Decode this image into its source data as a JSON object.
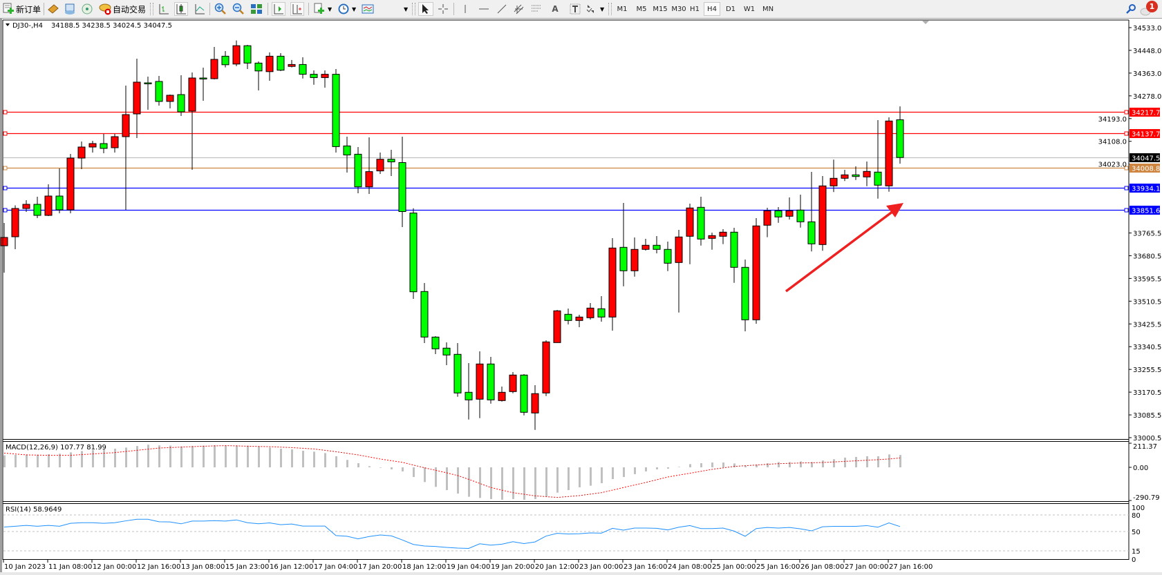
{
  "toolbar": {
    "new_order": "新订单",
    "auto_trading": "自动交易",
    "timeframes": [
      "M1",
      "M5",
      "M15",
      "M30",
      "H1",
      "H4",
      "D1",
      "W1",
      "MN"
    ],
    "active_timeframe": "H4",
    "notification_count": "1",
    "text_tool": "A"
  },
  "chart": {
    "symbol_label": "DJ30-,H4",
    "ohlc_label": "34188.5 34238.5 34024.5 34047.5",
    "up_color": "#ff0000",
    "down_color": "#00ff00",
    "price_ticks": [
      "34533.0",
      "34448.0",
      "34363.0",
      "34278.0",
      "34193.0",
      "34108.0",
      "34023.0",
      "33765.5",
      "33680.5",
      "33595.5",
      "33510.5",
      "33425.5",
      "33340.5",
      "33255.5",
      "33170.5",
      "33085.5",
      "33000.5"
    ],
    "levels": [
      {
        "value": "34217.7",
        "color": "#ff0000"
      },
      {
        "value": "34137.7",
        "color": "#ff0000"
      },
      {
        "value": "34008.8",
        "color": "#cd853f"
      },
      {
        "value": "33934.1",
        "color": "#0000ff"
      },
      {
        "value": "33851.6",
        "color": "#0000ff"
      }
    ],
    "bid": {
      "value": "34047.5",
      "color": "#c0c0c0"
    },
    "candles": [
      [
        33717.7,
        33802.9,
        33617.1,
        33748.7
      ],
      [
        33751.3,
        33868.8,
        33704.8,
        33857.0
      ],
      [
        33857.0,
        33888.0,
        33844.1,
        33872.5
      ],
      [
        33872.5,
        33900.9,
        33820.9,
        33831.2
      ],
      [
        33831.2,
        33947.3,
        33828.7,
        33903.5
      ],
      [
        33903.5,
        34006.7,
        33839.0,
        33851.9
      ],
      [
        33851.9,
        34060.9,
        33839.0,
        34045.4
      ],
      [
        34045.4,
        34107.2,
        34004.1,
        34086.7
      ],
      [
        34086.7,
        34109.9,
        34066.0,
        34099.6
      ],
      [
        34099.6,
        34135.7,
        34063.4,
        34081.5
      ],
      [
        34084.1,
        34135.7,
        34066.0,
        34125.4
      ],
      [
        34125.4,
        34316.3,
        33851.9,
        34207.9
      ],
      [
        34210.5,
        34416.9,
        34120.2,
        34329.2
      ],
      [
        34326.6,
        34349.8,
        34226.0,
        34324.0
      ],
      [
        34331.8,
        34352.4,
        34241.5,
        34257.1
      ],
      [
        34257.1,
        34282.7,
        34231.1,
        34280.2
      ],
      [
        34282.7,
        34355.0,
        34202.8,
        34218.2
      ],
      [
        34220.8,
        34365.3,
        34001.5,
        34344.7
      ],
      [
        34344.7,
        34383.4,
        34259.5,
        34342.1
      ],
      [
        34342.1,
        34460.8,
        34339.5,
        34414.3
      ],
      [
        34426.2,
        34445.3,
        34384.4,
        34394.2
      ],
      [
        34396.8,
        34485.0,
        34388.8,
        34465.4
      ],
      [
        34465.4,
        34468.5,
        34378.2,
        34400.4
      ],
      [
        34400.4,
        34406.6,
        34298.2,
        34371.0
      ],
      [
        34368.4,
        34440.4,
        34334.3,
        34426.2
      ],
      [
        34426.2,
        34437.5,
        34370.5,
        34373.8
      ],
      [
        34388.0,
        34412.0,
        34384.4,
        34395.2
      ],
      [
        34395.2,
        34422.1,
        34342.6,
        34358.6
      ],
      [
        34358.6,
        34373.0,
        34319.4,
        34346.2
      ],
      [
        34346.2,
        34373.0,
        34308.5,
        34358.6
      ],
      [
        34358.6,
        34378.2,
        34066.0,
        34088.2
      ],
      [
        34090.8,
        34125.4,
        33991.2,
        34057.0
      ],
      [
        34059.8,
        34086.7,
        33913.8,
        33937.8
      ],
      [
        33937.8,
        34122.8,
        33911.2,
        33994.8
      ],
      [
        33997.4,
        34066.0,
        33986.0,
        34041.0
      ],
      [
        34041.0,
        34076.3,
        33978.3,
        34031.2
      ],
      [
        34028.6,
        34125.4,
        33787.4,
        33845.4
      ],
      [
        33840.0,
        33857.8,
        33519.1,
        33545.6
      ],
      [
        33546.7,
        33578.4,
        33354.0,
        33376.4
      ],
      [
        33376.4,
        33379.7,
        33312.7,
        33332.5
      ],
      [
        33335.1,
        33356.5,
        33271.4,
        33309.3
      ],
      [
        33311.9,
        33353.9,
        33153.5,
        33167.4
      ],
      [
        33170.0,
        33279.1,
        33068.3,
        33141.6
      ],
      [
        33144.2,
        33323.0,
        33073.5,
        33275.8
      ],
      [
        33275.8,
        33302.4,
        33127.7,
        33141.6
      ],
      [
        33139.0,
        33191.4,
        33135.4,
        33170.0
      ],
      [
        33172.6,
        33245.6,
        33166.4,
        33234.5
      ],
      [
        33234.5,
        33237.8,
        33083.8,
        33095.2
      ],
      [
        33092.6,
        33196.6,
        33029.6,
        33165.0
      ],
      [
        33167.4,
        33364.3,
        33156.1,
        33358.3
      ],
      [
        33355.7,
        33477.8,
        33355.7,
        33474.5
      ],
      [
        33461.5,
        33483.0,
        33423.6,
        33438.3
      ],
      [
        33438.3,
        33459.7,
        33413.3,
        33451.2
      ],
      [
        33448.6,
        33503.6,
        33441.7,
        33484.7
      ],
      [
        33482.2,
        33529.4,
        33433.9,
        33451.2
      ],
      [
        33451.2,
        33746.1,
        33400.4,
        33709.2
      ],
      [
        33711.8,
        33877.7,
        33566.3,
        33624.1
      ],
      [
        33624.1,
        33748.7,
        33602.4,
        33704.1
      ],
      [
        33704.1,
        33743.5,
        33699.7,
        33719.5
      ],
      [
        33719.5,
        33753.8,
        33689.3,
        33704.1
      ],
      [
        33704.1,
        33733.2,
        33623.0,
        33652.4
      ],
      [
        33655.0,
        33777.1,
        33468.2,
        33750.5
      ],
      [
        33753.1,
        33875.1,
        33648.8,
        33858.9
      ],
      [
        33861.4,
        33900.9,
        33718.5,
        33742.7
      ],
      [
        33745.3,
        33766.7,
        33703.0,
        33755.6
      ],
      [
        33753.1,
        33779.6,
        33723.7,
        33768.5
      ],
      [
        33768.5,
        33784.8,
        33579.2,
        33637.0
      ],
      [
        33637.0,
        33666.1,
        33397.8,
        33440.9
      ],
      [
        33440.9,
        33820.9,
        33426.2,
        33791.8
      ],
      [
        33794.4,
        33859.6,
        33749.5,
        33848.5
      ],
      [
        33848.5,
        33862.2,
        33803.6,
        33825.3
      ],
      [
        33827.9,
        33898.3,
        33815.8,
        33848.5
      ],
      [
        33851.1,
        33908.6,
        33785.6,
        33807.2
      ],
      [
        33807.2,
        33993.8,
        33696.3,
        33724.7
      ],
      [
        33722.1,
        33978.3,
        33698.9,
        33941.4
      ],
      [
        33941.4,
        34039.6,
        33918.2,
        33969.8
      ],
      [
        33969.8,
        34001.5,
        33959.5,
        33982.7
      ],
      [
        33982.7,
        34014.4,
        33963.6,
        33976.5
      ],
      [
        33974.9,
        34032.5,
        33940.4,
        33995.6
      ],
      [
        33993.0,
        34187.3,
        33893.9,
        33944.0
      ],
      [
        33941.4,
        34197.6,
        33919.7,
        34183.9
      ],
      [
        34188.5,
        34238.5,
        34024.5,
        34047.5
      ]
    ]
  },
  "macd": {
    "label": "MACD(12,26,9) 107.77 81.99",
    "axis": [
      "211.37",
      "0.00",
      "-290.79"
    ],
    "histogram_color": "#c0c0c0",
    "signal_color": "#ff0000",
    "histogram": [
      105,
      109,
      113,
      111,
      115,
      119,
      131,
      143,
      151,
      157,
      163,
      173,
      187,
      198,
      192,
      190,
      183,
      187,
      190,
      194,
      192,
      192,
      190,
      185,
      173,
      163,
      157,
      145,
      137,
      125,
      97,
      65,
      36,
      10,
      -4,
      -18,
      -36,
      -85,
      -129,
      -171,
      -200,
      -230,
      -258,
      -268,
      -278,
      -284,
      -278,
      -284,
      -278,
      -254,
      -222,
      -200,
      -175,
      -161,
      -139,
      -103,
      -85,
      -60,
      -36,
      -18,
      -12,
      4,
      28,
      36,
      42,
      42,
      34,
      12,
      24,
      36,
      46,
      46,
      52,
      46,
      60,
      71,
      85,
      91,
      97,
      97,
      113,
      107.77
    ],
    "signal": [
      125,
      117,
      109,
      107,
      105,
      105,
      105,
      111,
      117,
      123,
      129,
      139,
      149,
      159,
      169,
      173,
      177,
      181,
      185,
      188,
      190,
      188,
      185,
      183,
      181,
      177,
      173,
      167,
      161,
      149,
      137,
      123,
      109,
      91,
      73,
      58,
      44,
      20,
      -4,
      -26,
      -48,
      -72,
      -105,
      -141,
      -177,
      -200,
      -222,
      -236,
      -250,
      -257,
      -264,
      -256,
      -248,
      -235,
      -222,
      -200,
      -177,
      -155,
      -133,
      -109,
      -85,
      -68,
      -52,
      -35,
      -18,
      -5,
      8,
      14,
      20,
      26,
      32,
      35,
      38,
      40,
      42,
      47,
      52,
      57,
      62,
      67,
      73,
      81.99
    ]
  },
  "rsi": {
    "label": "RSI(14) 58.9649",
    "levels": [
      "100",
      "80",
      "50",
      "15",
      "0"
    ],
    "line_color": "#1e90ff",
    "values": [
      58.2,
      59.5,
      61.1,
      59.5,
      61.1,
      59.5,
      64.8,
      66.0,
      66.0,
      64.8,
      66.0,
      69.3,
      72.2,
      72.2,
      67.7,
      67.3,
      64.0,
      68.9,
      68.9,
      69.7,
      68.9,
      71.0,
      66.0,
      64.0,
      65.6,
      62.3,
      63.6,
      59.9,
      59.9,
      59.9,
      42.6,
      41.4,
      36.8,
      41.0,
      43.8,
      42.2,
      34.8,
      26.6,
      23.7,
      22.9,
      21.2,
      20.0,
      19.4,
      27.8,
      25.3,
      27.0,
      31.5,
      28.2,
      31.1,
      41.8,
      46.7,
      45.5,
      45.9,
      47.5,
      47.1,
      55.8,
      52.5,
      56.2,
      56.2,
      55.8,
      52.9,
      57.8,
      60.7,
      55.3,
      55.3,
      56.2,
      50.8,
      41.4,
      55.3,
      57.4,
      56.2,
      57.4,
      54.9,
      51.2,
      58.6,
      59.4,
      59.4,
      59.4,
      60.7,
      57.8,
      65.6,
      58.9649
    ]
  },
  "time_axis": [
    "10 Jan 2023",
    "11 Jan 08:00",
    "12 Jan 00:00",
    "12 Jan 16:00",
    "13 Jan 08:00",
    "15 Jan 23:00",
    "16 Jan 12:00",
    "17 Jan 04:00",
    "17 Jan 20:00",
    "18 Jan 12:00",
    "19 Jan 04:00",
    "19 Jan 20:00",
    "20 Jan 12:00",
    "23 Jan 00:00",
    "23 Jan 16:00",
    "24 Jan 08:00",
    "25 Jan 00:00",
    "25 Jan 16:00",
    "26 Jan 08:00",
    "27 Jan 00:00",
    "27 Jan 16:00"
  ]
}
